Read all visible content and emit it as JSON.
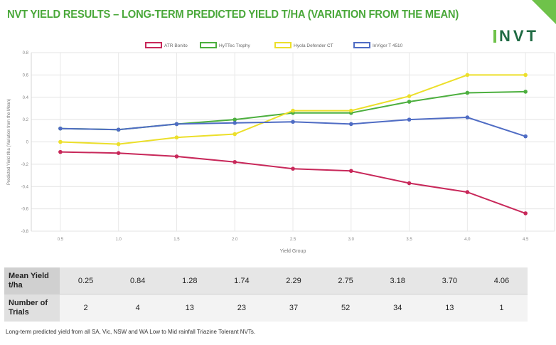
{
  "header": {
    "title": "NVT YIELD RESULTS – LONG-TERM PREDICTED YIELD T/HA (VARIATION FROM THE MEAN)",
    "logo_text": "NVT"
  },
  "chart_data": {
    "type": "line",
    "xlabel": "Yield Group",
    "ylabel": "Predicted Yield t/ha (Variation from the Mean)",
    "x": [
      0.5,
      1.0,
      1.5,
      2.0,
      2.5,
      3.0,
      3.5,
      4.0,
      4.5
    ],
    "x_tick_labels": [
      "0.5",
      "1.0",
      "1.5",
      "2.0",
      "2.5",
      "3.0",
      "3.5",
      "4.0",
      "4.5"
    ],
    "ylim": [
      -0.8,
      0.8
    ],
    "y_ticks": [
      0.8,
      0.6,
      0.4,
      0.2,
      0,
      -0.2,
      -0.4,
      -0.6,
      -0.8
    ],
    "y_tick_labels": [
      "0.8",
      "0.6",
      "0.4",
      "0.2",
      "0",
      "-0.2",
      "-0.4",
      "-0.6",
      "-0.8"
    ],
    "grid": true,
    "legend_position": "top",
    "series": [
      {
        "name": "ATR Bonito",
        "color": "#c8285a",
        "values": [
          -0.09,
          -0.1,
          -0.13,
          -0.18,
          -0.24,
          -0.26,
          -0.37,
          -0.45,
          -0.64
        ]
      },
      {
        "name": "HyTTec Trophy",
        "color": "#4caf3e",
        "values": [
          0.12,
          0.11,
          0.16,
          0.2,
          0.26,
          0.26,
          0.36,
          0.44,
          0.45
        ]
      },
      {
        "name": "Hyola Defender CT",
        "color": "#ecdf2a",
        "values": [
          0.0,
          -0.02,
          0.04,
          0.07,
          0.28,
          0.28,
          0.41,
          0.6,
          0.6
        ]
      },
      {
        "name": "InVigor T 4510",
        "color": "#4f6cc4",
        "values": [
          0.12,
          0.11,
          0.16,
          0.17,
          0.18,
          0.16,
          0.2,
          0.22,
          0.05
        ]
      }
    ]
  },
  "table": {
    "rows": [
      {
        "label": "Mean Yield t/ha",
        "values": [
          "0.25",
          "0.84",
          "1.28",
          "1.74",
          "2.29",
          "2.75",
          "3.18",
          "3.70",
          "4.06"
        ]
      },
      {
        "label": "Number of Trials",
        "values": [
          "2",
          "4",
          "13",
          "23",
          "37",
          "52",
          "34",
          "13",
          "1"
        ]
      }
    ]
  },
  "footnote": "Long-term predicted yield from all SA, Vic, NSW and WA Low to Mid rainfall Triazine Tolerant NVTs."
}
